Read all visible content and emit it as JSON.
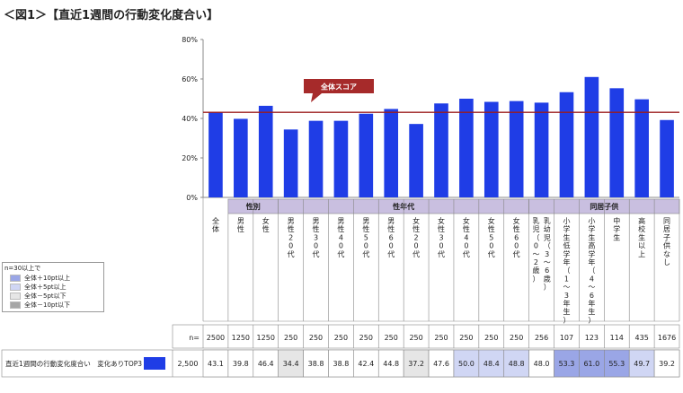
{
  "title": "＜図1＞【直近1週間の行動変化度合い】",
  "chart_data": {
    "type": "bar",
    "ylim": [
      0,
      80
    ],
    "y_ticks": [
      "0%",
      "20%",
      "40%",
      "60%",
      "80%"
    ],
    "reference_line": {
      "label": "全体スコア",
      "value": 43.1
    },
    "groups": [
      {
        "label": "性別",
        "start": 1,
        "end": 2
      },
      {
        "label": "性年代",
        "start": 3,
        "end": 12
      },
      {
        "label": "同居子供",
        "start": 13,
        "end": 18
      }
    ],
    "categories": [
      "全体",
      "男性",
      "女性",
      "男性20代",
      "男性30代",
      "男性40代",
      "男性50代",
      "男性60代",
      "女性20代",
      "女性30代",
      "女性40代",
      "女性50代",
      "女性60代",
      "乳幼児（0〜2歳）（3〜6歳）",
      "小学生低学年（1〜3年生）",
      "小学生高学年（4〜6年生）",
      "中学生",
      "高校生以上",
      "同居子供なし"
    ],
    "category_lines": [
      [
        "全",
        "体"
      ],
      [
        "男",
        "性"
      ],
      [
        "女",
        "性"
      ],
      [
        "男",
        "性",
        "2",
        "0",
        "代"
      ],
      [
        "男",
        "性",
        "3",
        "0",
        "代"
      ],
      [
        "男",
        "性",
        "4",
        "0",
        "代"
      ],
      [
        "男",
        "性",
        "5",
        "0",
        "代"
      ],
      [
        "男",
        "性",
        "6",
        "0",
        "代"
      ],
      [
        "女",
        "性",
        "2",
        "0",
        "代"
      ],
      [
        "女",
        "性",
        "3",
        "0",
        "代"
      ],
      [
        "女",
        "性",
        "4",
        "0",
        "代"
      ],
      [
        "女",
        "性",
        "5",
        "0",
        "代"
      ],
      [
        "女",
        "性",
        "6",
        "0",
        "代"
      ],
      [
        "乳",
        "幼",
        "児",
        "（",
        "3",
        "〜",
        "6",
        "歳",
        "）"
      ],
      [
        "小",
        "学",
        "生",
        "低",
        "学",
        "年",
        "（",
        "1",
        "〜",
        "3",
        "年",
        "生",
        "）"
      ],
      [
        "小",
        "学",
        "生",
        "高",
        "学",
        "年",
        "（",
        "4",
        "〜",
        "6",
        "年",
        "生",
        "）"
      ],
      [
        "中",
        "学",
        "生"
      ],
      [
        "高",
        "校",
        "生",
        "以",
        "上"
      ],
      [
        "同",
        "居",
        "子",
        "供",
        "な",
        "し"
      ]
    ],
    "category_lines_2": [
      null,
      null,
      null,
      null,
      null,
      null,
      null,
      null,
      null,
      null,
      null,
      null,
      null,
      [
        "乳",
        "児",
        "（",
        "0",
        "〜",
        "2",
        "歳",
        "）"
      ],
      null,
      null,
      null,
      null,
      null
    ],
    "n_label": "n=",
    "n_values": [
      2500,
      1250,
      1250,
      250,
      250,
      250,
      250,
      250,
      250,
      250,
      250,
      250,
      250,
      256,
      107,
      123,
      114,
      435,
      1676
    ],
    "series": [
      {
        "name": "直近1週間の行動変化度合い　変化ありTOP3",
        "n_total": "2,500",
        "values": [
          43.1,
          39.8,
          46.4,
          34.4,
          38.8,
          38.8,
          42.4,
          44.8,
          37.2,
          47.6,
          50.0,
          48.4,
          48.8,
          48.0,
          53.3,
          61.0,
          55.3,
          49.7,
          39.2
        ]
      }
    ],
    "legend": {
      "header": "n=30以上で",
      "items": [
        {
          "label": "全体＋10pt以上",
          "color": "#9aa6e6"
        },
        {
          "label": "全体＋5pt以上",
          "color": "#d0d6f4"
        },
        {
          "label": "全体－5pt以下",
          "color": "#e6e6e6"
        },
        {
          "label": "全体－10pt以下",
          "color": "#a6a6a6"
        }
      ]
    },
    "colors": {
      "bar": "#1f3de6",
      "ref_line": "#9b1b1b",
      "group_header": "#c9bfe0",
      "callout": "#a62a2a"
    }
  }
}
